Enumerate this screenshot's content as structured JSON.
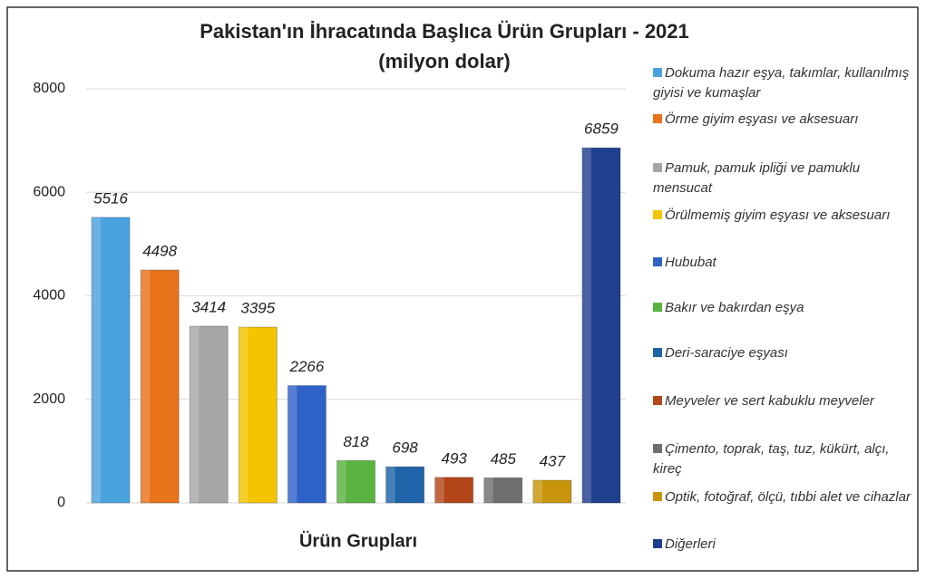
{
  "chart_data": {
    "type": "bar",
    "title": "Pakistan'ın İhracatında Başlıca Ürün Grupları - 2021",
    "subtitle": "(milyon dolar)",
    "x_label": "Ürün Grupları",
    "categories": [
      "Dokuma hazır eşya, takımlar, kullanılmış giyisi ve kumaşlar",
      "Örme giyim eşyası ve aksesuarı",
      "Pamuk, pamuk ipliği ve pamuklu mensucat",
      "Örülmemiş giyim eşyası ve aksesuarı",
      "Hububat",
      "Bakır ve bakırdan eşya",
      "Deri-saraciye eşyası",
      "Meyveler ve sert kabuklu meyveler",
      "Çimento, toprak, taş, tuz, kükürt, alçı, kireç",
      "Optik, fotoğraf, ölçü, tıbbi alet ve cihazlar",
      "Diğerleri"
    ],
    "values": [
      5516,
      4498,
      3414,
      3395,
      2266,
      818,
      698,
      493,
      485,
      437,
      6859
    ],
    "colors": [
      "#4aa3df",
      "#e8731a",
      "#a6a6a6",
      "#f5c400",
      "#2f62c8",
      "#58b33f",
      "#1f63a8",
      "#b4471a",
      "#6f6f6f",
      "#c9950c",
      "#1f3f8f"
    ],
    "ylim": [
      0,
      8000
    ],
    "yticks": [
      0,
      2000,
      4000,
      6000,
      8000
    ],
    "grid": true,
    "legend": "right"
  }
}
